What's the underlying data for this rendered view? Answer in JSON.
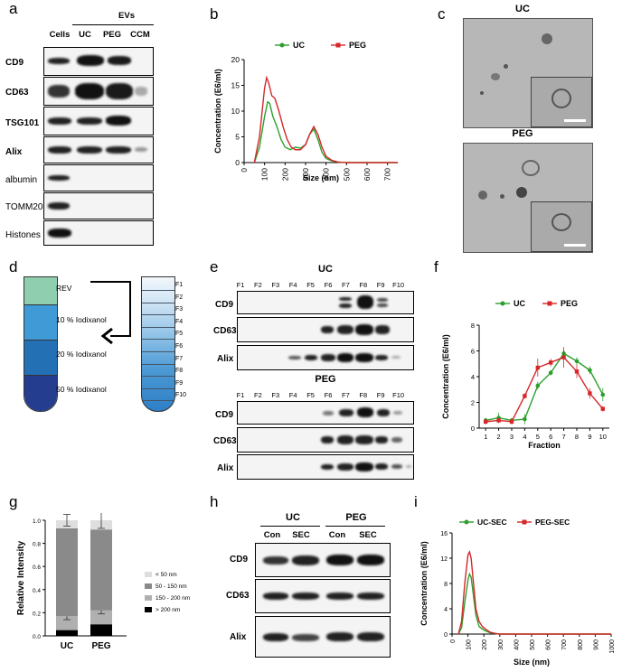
{
  "panels": {
    "a": "a",
    "b": "b",
    "c": "c",
    "d": "d",
    "e": "e",
    "f": "f",
    "g": "g",
    "h": "h",
    "i": "i"
  },
  "panel_a": {
    "group_label": "EVs",
    "lanes": [
      "Cells",
      "UC",
      "PEG",
      "CCM"
    ],
    "rows": [
      "CD9",
      "CD63",
      "TSG101",
      "Alix",
      "albumin",
      "TOMM20",
      "Histones"
    ]
  },
  "panel_c": {
    "top_label": "UC",
    "bottom_label": "PEG"
  },
  "panel_d": {
    "layers": [
      "REV",
      "10 % Iodixanol",
      "20 % Iodixanol",
      "50 % Iodixanol"
    ],
    "fractions": [
      "F1",
      "F2",
      "F3",
      "F4",
      "F5",
      "F6",
      "F7",
      "F8",
      "F9",
      "F10"
    ],
    "colors": {
      "rev": "#8fcfb0",
      "l10": "#3f9ad6",
      "l20": "#2470b4",
      "l50": "#253d8e"
    }
  },
  "panel_e": {
    "uc_title": "UC",
    "peg_title": "PEG",
    "fractions": [
      "F1",
      "F2",
      "F3",
      "F4",
      "F5",
      "F6",
      "F7",
      "F8",
      "F9",
      "F10"
    ],
    "rows": [
      "CD9",
      "CD63",
      "Alix"
    ]
  },
  "panel_h": {
    "groups": [
      "UC",
      "PEG"
    ],
    "lanes": [
      "Con",
      "SEC",
      "Con",
      "SEC"
    ],
    "rows": [
      "CD9",
      "CD63",
      "Alix"
    ]
  },
  "chart_data": [
    {
      "id": "b",
      "type": "line",
      "xlabel": "Size (nm)",
      "ylabel": "Concentration (E6/ml)",
      "xlim": [
        0,
        750
      ],
      "ylim": [
        0,
        20
      ],
      "xticks": [
        0,
        100,
        200,
        300,
        400,
        500,
        600,
        700
      ],
      "yticks": [
        0,
        5,
        10,
        15,
        20
      ],
      "legend_position": "top",
      "series": [
        {
          "name": "UC",
          "color": "#2ca02c",
          "x": [
            50,
            75,
            100,
            115,
            125,
            140,
            160,
            180,
            200,
            225,
            250,
            275,
            300,
            320,
            340,
            360,
            380,
            400,
            430,
            460,
            500,
            600,
            700,
            750
          ],
          "y": [
            0,
            3,
            9,
            11.8,
            11.5,
            9,
            7,
            4.5,
            3,
            2.5,
            3,
            2.8,
            3.5,
            5.5,
            6.5,
            4.5,
            2,
            0.8,
            0.3,
            0.1,
            0,
            0,
            0,
            0
          ]
        },
        {
          "name": "PEG",
          "color": "#d62728",
          "x": [
            50,
            75,
            100,
            110,
            120,
            135,
            150,
            170,
            190,
            210,
            230,
            250,
            275,
            300,
            320,
            340,
            360,
            380,
            400,
            430,
            460,
            500,
            600,
            700,
            750
          ],
          "y": [
            0,
            5,
            14.5,
            16.5,
            15.5,
            13,
            12.5,
            10,
            7,
            4.5,
            3,
            2.5,
            2.5,
            3.5,
            5.5,
            7,
            5.5,
            3,
            1.2,
            0.4,
            0.1,
            0,
            0,
            0,
            0
          ]
        }
      ]
    },
    {
      "id": "f",
      "type": "line",
      "xlabel": "Fraction",
      "ylabel": "Concentration (E6/ml)",
      "xlim": [
        0.5,
        10.5
      ],
      "ylim": [
        0,
        8
      ],
      "xticks": [
        1,
        2,
        3,
        4,
        5,
        6,
        7,
        8,
        9,
        10
      ],
      "yticks": [
        0,
        2,
        4,
        6,
        8
      ],
      "legend_position": "top",
      "series": [
        {
          "name": "UC",
          "color": "#2ca02c",
          "x": [
            1,
            2,
            3,
            4,
            5,
            6,
            7,
            8,
            9,
            10
          ],
          "y": [
            0.6,
            0.8,
            0.6,
            0.7,
            3.3,
            4.3,
            5.8,
            5.2,
            4.5,
            2.6
          ],
          "err": [
            0.2,
            0.4,
            0.2,
            0.4,
            0.3,
            0.2,
            0.3,
            0.3,
            0.3,
            0.5
          ]
        },
        {
          "name": "PEG",
          "color": "#d62728",
          "x": [
            1,
            2,
            3,
            4,
            5,
            6,
            7,
            8,
            9,
            10
          ],
          "y": [
            0.5,
            0.6,
            0.5,
            2.5,
            4.7,
            5.1,
            5.5,
            4.4,
            2.7,
            1.5
          ],
          "err": [
            0.2,
            0.2,
            0.2,
            0.2,
            0.7,
            0.3,
            0.8,
            0.5,
            0.4,
            0.2
          ]
        }
      ]
    },
    {
      "id": "g",
      "type": "bar",
      "stacked": true,
      "ylabel": "Relative Intensity",
      "ylim": [
        0,
        1.0
      ],
      "yticks": [
        0,
        0.2,
        0.4,
        0.6,
        0.8,
        1.0
      ],
      "categories": [
        "UC",
        "PEG"
      ],
      "legend_position": "right",
      "series": [
        {
          "name": "> 200 nm",
          "color": "#000000",
          "values": [
            0.05,
            0.1
          ],
          "err": [
            0.0,
            0.0
          ]
        },
        {
          "name": "150 - 200 nm",
          "color": "#b0b0b0",
          "values": [
            0.12,
            0.12
          ],
          "err": [
            0.03,
            0.03
          ]
        },
        {
          "name": "50 - 150 nm",
          "color": "#8a8a8a",
          "values": [
            0.76,
            0.7
          ],
          "err": [
            0.0,
            0.0
          ]
        },
        {
          "name": "< 50 nm",
          "color": "#dedede",
          "values": [
            0.07,
            0.08
          ],
          "err": [
            0.05,
            0.07
          ]
        }
      ]
    },
    {
      "id": "i",
      "type": "line",
      "xlabel": "Size (nm)",
      "ylabel": "Concentration (E6/ml)",
      "xlim": [
        0,
        1000
      ],
      "ylim": [
        0,
        16
      ],
      "xticks": [
        0,
        100,
        200,
        300,
        400,
        500,
        600,
        700,
        800,
        900,
        1000
      ],
      "yticks": [
        0,
        4,
        8,
        12,
        16
      ],
      "legend_position": "top",
      "series": [
        {
          "name": "UC-SEC",
          "color": "#2ca02c",
          "x": [
            40,
            60,
            80,
            100,
            110,
            120,
            135,
            150,
            170,
            190,
            210,
            240,
            270,
            300,
            400,
            600,
            800,
            1000
          ],
          "y": [
            0,
            1,
            5,
            8.5,
            9.5,
            9,
            6,
            3,
            1.2,
            0.8,
            0.5,
            0.2,
            0.1,
            0,
            0,
            0,
            0,
            0
          ]
        },
        {
          "name": "PEG-SEC",
          "color": "#d62728",
          "x": [
            40,
            60,
            80,
            100,
            110,
            120,
            135,
            150,
            170,
            190,
            210,
            240,
            270,
            300,
            400,
            600,
            800,
            1000
          ],
          "y": [
            0,
            2,
            8,
            12.5,
            13,
            12,
            8,
            4,
            2,
            1.2,
            0.8,
            0.3,
            0.1,
            0,
            0,
            0,
            0,
            0
          ]
        }
      ]
    }
  ]
}
